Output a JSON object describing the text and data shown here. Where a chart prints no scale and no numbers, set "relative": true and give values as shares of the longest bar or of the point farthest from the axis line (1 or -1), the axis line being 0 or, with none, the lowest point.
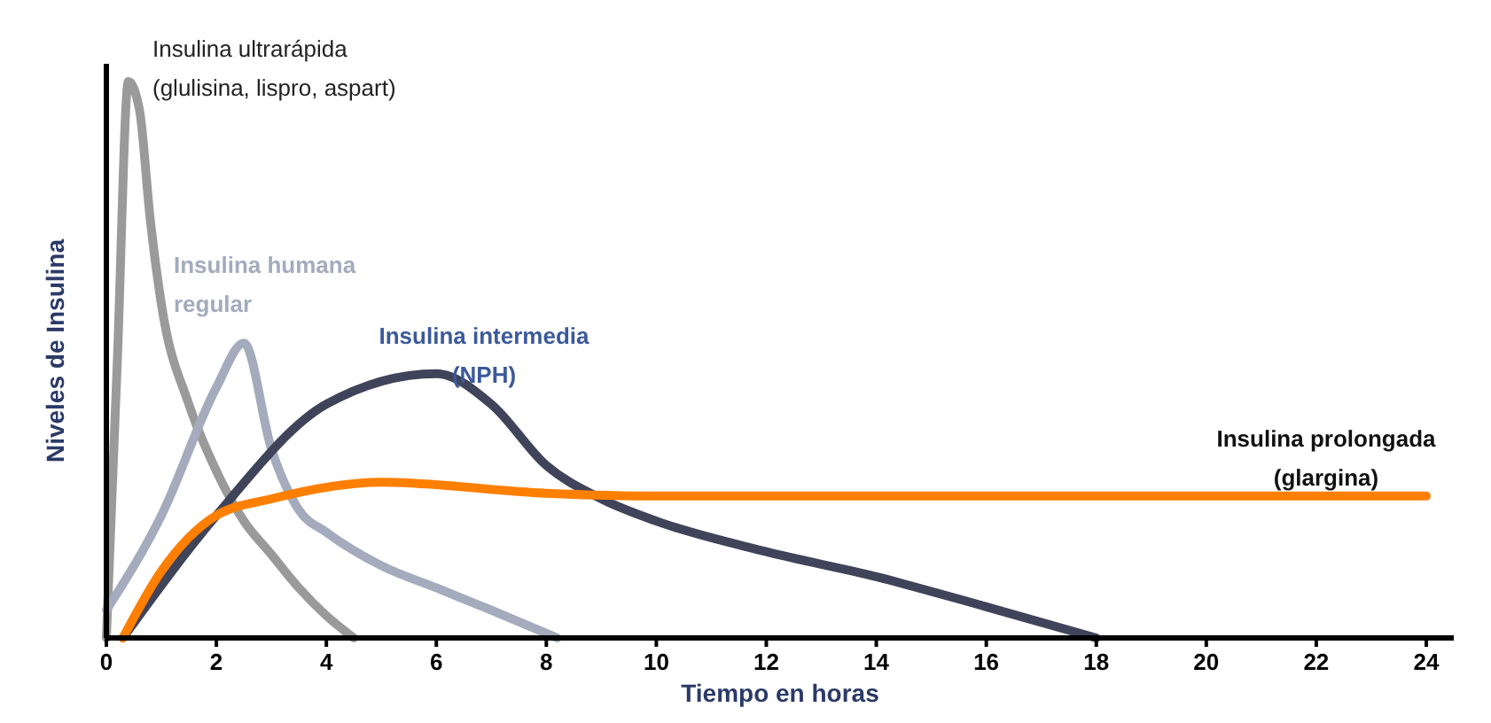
{
  "chart_data": {
    "type": "line",
    "relative": true,
    "xlabel": "Tiempo en horas",
    "ylabel": "Niveles de Insulina",
    "xlim": [
      0,
      24.5
    ],
    "xticks": [
      0,
      2,
      4,
      6,
      8,
      10,
      12,
      14,
      16,
      18,
      20,
      22,
      24
    ],
    "grid": false,
    "legend": false,
    "marker": "none",
    "line_style": "solid",
    "series": [
      {
        "name": "Insulina ultrarápida (glulisina, lispro, aspart)",
        "color": "#9a9a9a",
        "x": [
          0,
          0.2,
          0.4,
          0.6,
          0.8,
          1,
          1.5,
          2,
          2.5,
          3,
          3.5,
          4,
          4.5
        ],
        "values": [
          0,
          0.5,
          1,
          0.95,
          0.75,
          0.6,
          0.42,
          0.3,
          0.21,
          0.15,
          0.09,
          0.04,
          0
        ]
      },
      {
        "name": "Insulina humana regular",
        "color": "#a3abbd",
        "x": [
          0,
          1,
          2,
          2.5,
          3,
          3.5,
          4,
          5,
          6,
          7,
          8.2
        ],
        "values": [
          0.05,
          0.22,
          0.45,
          0.53,
          0.34,
          0.23,
          0.19,
          0.13,
          0.09,
          0.05,
          0
        ]
      },
      {
        "name": "Insulina intermedia (NPH)",
        "color": "#40445a",
        "x": [
          0.3,
          2,
          4,
          6,
          7,
          8,
          9,
          10,
          12,
          14,
          16,
          18
        ],
        "values": [
          0,
          0.22,
          0.42,
          0.475,
          0.42,
          0.31,
          0.25,
          0.21,
          0.155,
          0.11,
          0.056,
          0
        ]
      },
      {
        "name": "Insulina prolongada (glargina)",
        "color": "#ff7f00",
        "x": [
          0.3,
          1,
          2,
          3,
          5,
          8,
          10,
          24
        ],
        "values": [
          0,
          0.12,
          0.22,
          0.25,
          0.28,
          0.26,
          0.255,
          0.255
        ]
      }
    ]
  }
}
